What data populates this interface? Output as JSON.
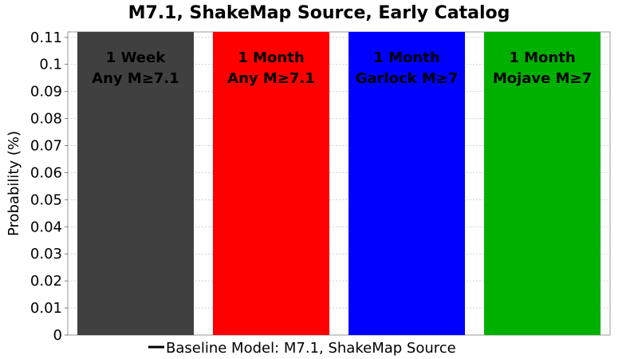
{
  "chart_data": {
    "type": "bar",
    "title": "M7.1, ShakeMap Source, Early Catalog",
    "xlabel": "",
    "ylabel": "Probability (%)",
    "ylim": [
      0,
      0.112
    ],
    "yticks": [
      "0",
      "0.01",
      "0.02",
      "0.03",
      "0.04",
      "0.05",
      "0.06",
      "0.07",
      "0.08",
      "0.09",
      "0.1",
      "0.11"
    ],
    "grid": true,
    "legend_position": "bottom",
    "categories": [
      [
        "1 Week",
        "Any M≥7.1"
      ],
      [
        "1 Month",
        "Any M≥7.1"
      ],
      [
        "1 Month",
        "Garlock M≥7"
      ],
      [
        "1 Month",
        "Mojave M≥7"
      ]
    ],
    "series": [
      {
        "name": "Baseline Model: M7.1, ShakeMap Source",
        "values": [
          0.112,
          0.112,
          0.112,
          0.112
        ],
        "colors": [
          "#404040",
          "#ff0000",
          "#0000ff",
          "#00b000"
        ]
      }
    ],
    "legend_line_color": "#000000"
  }
}
